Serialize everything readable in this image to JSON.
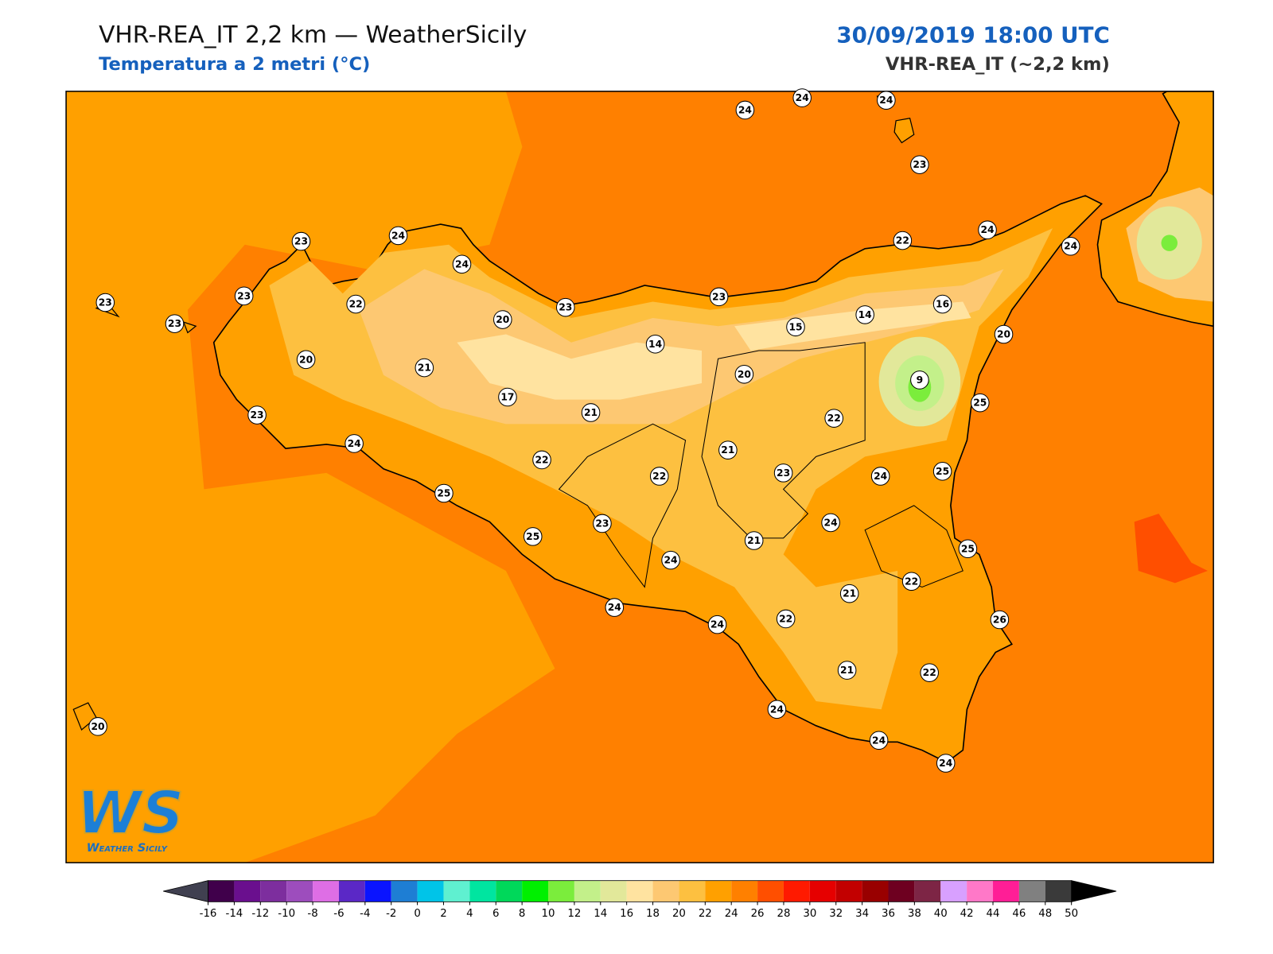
{
  "header": {
    "title": "VHR-REA_IT 2,2 km — WeatherSicily",
    "subtitle": "Temperatura a 2 metri (°C)",
    "datetime": "30/09/2019 18:00 UTC",
    "model": "VHR-REA_IT (~2,2 km)"
  },
  "stations": [
    {
      "value": 24
    },
    {
      "value": 24
    },
    {
      "value": 24
    },
    {
      "value": 23
    },
    {
      "value": 22
    },
    {
      "value": 24
    },
    {
      "value": 24
    },
    {
      "value": 23
    },
    {
      "value": 24
    },
    {
      "value": 24
    },
    {
      "value": 23
    },
    {
      "value": 23
    },
    {
      "value": 23
    },
    {
      "value": 22
    },
    {
      "value": 20
    },
    {
      "value": 23
    },
    {
      "value": 23
    },
    {
      "value": 14
    },
    {
      "value": 16
    },
    {
      "value": 15
    },
    {
      "value": 14
    },
    {
      "value": 20
    },
    {
      "value": 20
    },
    {
      "value": 21
    },
    {
      "value": 20
    },
    {
      "value": 9
    },
    {
      "value": 17
    },
    {
      "value": 21
    },
    {
      "value": 25
    },
    {
      "value": 23
    },
    {
      "value": 22
    },
    {
      "value": 24
    },
    {
      "value": 21
    },
    {
      "value": 22
    },
    {
      "value": 23
    },
    {
      "value": 22
    },
    {
      "value": 24
    },
    {
      "value": 25
    },
    {
      "value": 25
    },
    {
      "value": 24
    },
    {
      "value": 23
    },
    {
      "value": 25
    },
    {
      "value": 21
    },
    {
      "value": 25
    },
    {
      "value": 24
    },
    {
      "value": 22
    },
    {
      "value": 21
    },
    {
      "value": 24
    },
    {
      "value": 22
    },
    {
      "value": 24
    },
    {
      "value": 26
    },
    {
      "value": 21
    },
    {
      "value": 22
    },
    {
      "value": 24
    },
    {
      "value": 20
    },
    {
      "value": 24
    },
    {
      "value": 24
    }
  ],
  "logo": {
    "letters": "WS",
    "name": "Weather Sicily"
  },
  "colorbar": {
    "ticks": [
      -16,
      -14,
      -12,
      -10,
      -8,
      -6,
      -4,
      -2,
      0,
      2,
      4,
      6,
      8,
      10,
      12,
      14,
      16,
      18,
      20,
      22,
      24,
      26,
      28,
      30,
      32,
      34,
      36,
      38,
      40,
      42,
      44,
      46,
      48,
      50
    ],
    "colors": [
      "#40004b",
      "#6a0f8e",
      "#7d2e9e",
      "#9d4dbd",
      "#de6ee5",
      "#5b28c6",
      "#0a14ff",
      "#1e7ed4",
      "#00c4e8",
      "#5ff0d0",
      "#00e5a0",
      "#00d85a",
      "#00f000",
      "#7bed3c",
      "#c3f08a",
      "#e2e89a",
      "#ffe3a0",
      "#fdc872",
      "#fdc040",
      "#ffa000",
      "#ff8000",
      "#ff4f00",
      "#ff1a00",
      "#e60000",
      "#c20000",
      "#990000",
      "#6e0020",
      "#7d2545",
      "#d8a0ff",
      "#ff78c8",
      "#ff1e96",
      "#808080",
      "#3a3a3a"
    ],
    "under_color": "#404050",
    "over_color": "#000000"
  }
}
